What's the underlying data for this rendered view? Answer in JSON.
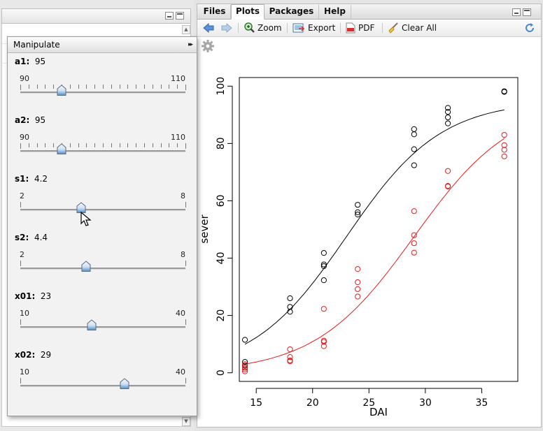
{
  "manipulate": {
    "title": "Manipulate",
    "collapse_glyph": "▸▸",
    "controls": [
      {
        "name": "a1",
        "value": "95",
        "min": "90",
        "max": "110",
        "fraction": 0.25,
        "ticks": 21
      },
      {
        "name": "a2",
        "value": "95",
        "min": "90",
        "max": "110",
        "fraction": 0.25,
        "ticks": 21
      },
      {
        "name": "s1",
        "value": "4.2",
        "min": "2",
        "max": "8",
        "fraction": 0.3667,
        "ticks": 2
      },
      {
        "name": "s2",
        "value": "4.4",
        "min": "2",
        "max": "8",
        "fraction": 0.4,
        "ticks": 2
      },
      {
        "name": "x01",
        "value": "23",
        "min": "10",
        "max": "40",
        "fraction": 0.4333,
        "ticks": 2
      },
      {
        "name": "x02",
        "value": "29",
        "min": "10",
        "max": "40",
        "fraction": 0.6333,
        "ticks": 2
      }
    ]
  },
  "tabs": [
    {
      "label": "Files",
      "active": false
    },
    {
      "label": "Plots",
      "active": true
    },
    {
      "label": "Packages",
      "active": false
    },
    {
      "label": "Help",
      "active": false
    }
  ],
  "toolbar": {
    "zoom_label": "Zoom",
    "export_label": "Export",
    "pdf_label": "PDF",
    "clear_all_label": "Clear All"
  },
  "colors": {
    "series_black": "#000000",
    "series_red": "#e41a1c",
    "accent_blue": "#4a86c8"
  },
  "chart_data": {
    "type": "scatter",
    "xlabel": "DAI",
    "ylabel": "sever",
    "xlim": [
      13.5,
      38.2
    ],
    "ylim": [
      -3,
      103
    ],
    "xticks": [
      15,
      20,
      25,
      30,
      35
    ],
    "yticks": [
      0,
      20,
      40,
      60,
      80,
      100
    ],
    "series": [
      {
        "color": "black",
        "points": [
          [
            14,
            11.5
          ],
          [
            14,
            3.8
          ],
          [
            14,
            2.5
          ],
          [
            14,
            1.8
          ],
          [
            18,
            26
          ],
          [
            18,
            23
          ],
          [
            18,
            21.3
          ],
          [
            21,
            41.8
          ],
          [
            21,
            37.8
          ],
          [
            21,
            37.2
          ],
          [
            21,
            32.3
          ],
          [
            24,
            58.6
          ],
          [
            24,
            56
          ],
          [
            24,
            55.2
          ],
          [
            29,
            85
          ],
          [
            29,
            83.2
          ],
          [
            29,
            78
          ],
          [
            29,
            72.4
          ],
          [
            32,
            92.4
          ],
          [
            32,
            91
          ],
          [
            32,
            89.1
          ],
          [
            32,
            87
          ],
          [
            37,
            98.2
          ],
          [
            37,
            98
          ]
        ],
        "curve": {
          "a": 95,
          "s": 4.2,
          "x0": 23
        }
      },
      {
        "color": "red",
        "points": [
          [
            14,
            3
          ],
          [
            14,
            1.8
          ],
          [
            14,
            1.2
          ],
          [
            14,
            0.5
          ],
          [
            18,
            8.2
          ],
          [
            18,
            5.5
          ],
          [
            18,
            4.3
          ],
          [
            18,
            4
          ],
          [
            21,
            22.3
          ],
          [
            21,
            11.2
          ],
          [
            21,
            10.8
          ],
          [
            21,
            9.3
          ],
          [
            24,
            36.2
          ],
          [
            24,
            31.6
          ],
          [
            24,
            29.2
          ],
          [
            24,
            26.6
          ],
          [
            29,
            56.4
          ],
          [
            29,
            48
          ],
          [
            29,
            45.2
          ],
          [
            29,
            41.9
          ],
          [
            32,
            70.4
          ],
          [
            32,
            65.2
          ],
          [
            32,
            65
          ],
          [
            37,
            83
          ],
          [
            37,
            79.4
          ],
          [
            37,
            77.8
          ],
          [
            37,
            75.5
          ]
        ],
        "curve": {
          "a": 95,
          "s": 4.4,
          "x0": 29
        }
      }
    ]
  }
}
